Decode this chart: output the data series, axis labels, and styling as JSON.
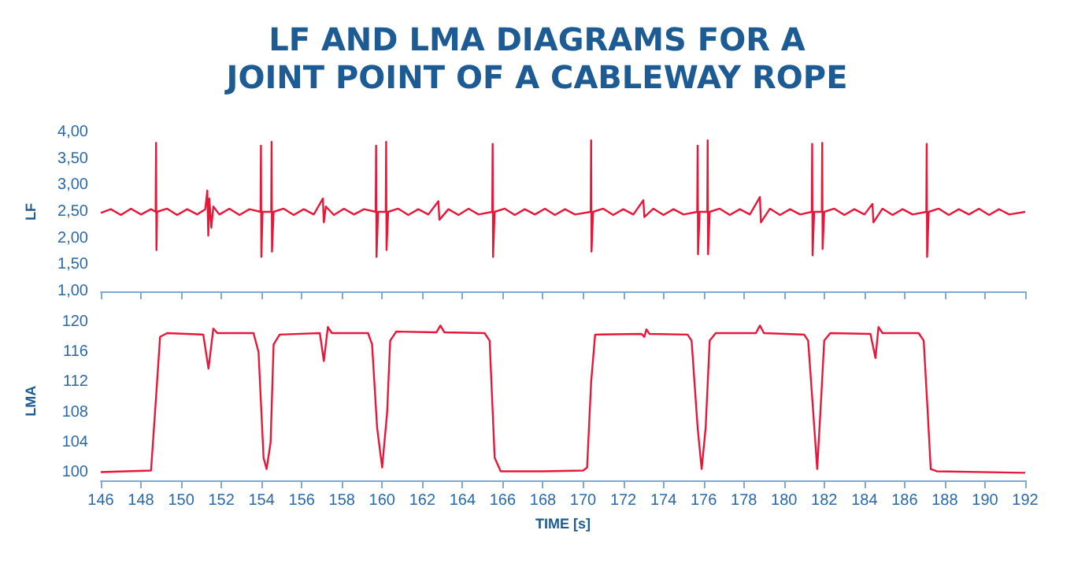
{
  "chart_data": [
    {
      "type": "line",
      "title": "LF AND LMA DIAGRAMS FOR A\nJOINT POINT OF A CABLEWAY ROPE",
      "ylabel": "LF",
      "marker": "none",
      "grid": false,
      "tick_labels": "y",
      "xlim": [
        146,
        192
      ],
      "xticks": [
        146,
        148,
        150,
        152,
        154,
        156,
        158,
        160,
        162,
        164,
        166,
        168,
        170,
        172,
        174,
        176,
        178,
        180,
        182,
        184,
        186,
        188,
        190,
        192
      ],
      "ylim": [
        1,
        4
      ],
      "yticks": [
        {
          "value": 1,
          "label": "1,00"
        },
        {
          "value": 1.5,
          "label": "1,50"
        },
        {
          "value": 2,
          "label": "2,00"
        },
        {
          "value": 2.5,
          "label": "2,50"
        },
        {
          "value": 3,
          "label": "3,00"
        },
        {
          "value": 3.5,
          "label": "3,50"
        },
        {
          "value": 4,
          "label": "4,00"
        }
      ],
      "x": [
        146,
        146.5,
        147,
        147.5,
        148,
        148.5,
        148.73,
        148.75,
        148.77,
        148.8,
        149.3,
        149.8,
        150.3,
        150.8,
        151.2,
        151.3,
        151.35,
        151.4,
        151.5,
        151.6,
        151.9,
        152.4,
        152.9,
        153.4,
        153.95,
        153.97,
        153.99,
        154.05,
        154.48,
        154.5,
        154.52,
        154.6,
        155.1,
        155.6,
        156.1,
        156.6,
        157.05,
        157.1,
        157.2,
        157.6,
        158.1,
        158.6,
        159.1,
        159.68,
        159.7,
        159.72,
        159.8,
        160.18,
        160.2,
        160.22,
        160.3,
        160.8,
        161.3,
        161.8,
        162.3,
        162.8,
        162.85,
        163.3,
        163.8,
        164.3,
        164.8,
        165.48,
        165.5,
        165.52,
        165.6,
        166.1,
        166.6,
        167.1,
        167.6,
        168.1,
        168.6,
        169.1,
        169.6,
        170.38,
        170.4,
        170.42,
        170.5,
        171,
        171.5,
        172,
        172.5,
        173,
        173.05,
        173.5,
        174,
        174.5,
        175,
        175.68,
        175.7,
        175.72,
        175.8,
        176.18,
        176.2,
        176.22,
        176.3,
        176.8,
        177.3,
        177.8,
        178.3,
        178.8,
        178.85,
        179.3,
        179.8,
        180.3,
        180.8,
        181.38,
        181.4,
        181.42,
        181.5,
        181.88,
        181.9,
        181.92,
        182,
        182.5,
        183,
        183.5,
        184,
        184.4,
        184.45,
        184.9,
        185.4,
        185.9,
        186.4,
        187.08,
        187.1,
        187.12,
        187.2,
        187.7,
        188.2,
        188.7,
        189.2,
        189.7,
        190.2,
        190.7,
        191.2,
        192
      ],
      "series": [
        {
          "color": "#e8173a",
          "values": [
            2.48,
            2.55,
            2.44,
            2.56,
            2.45,
            2.55,
            2.5,
            3.8,
            1.78,
            2.5,
            2.56,
            2.44,
            2.55,
            2.45,
            2.55,
            2.9,
            2.05,
            2.75,
            2.2,
            2.6,
            2.45,
            2.56,
            2.44,
            2.55,
            2.5,
            3.75,
            1.65,
            2.5,
            2.5,
            3.82,
            1.75,
            2.5,
            2.56,
            2.44,
            2.55,
            2.45,
            2.75,
            2.3,
            2.6,
            2.44,
            2.56,
            2.45,
            2.55,
            2.5,
            3.75,
            1.65,
            2.5,
            2.5,
            3.82,
            1.78,
            2.5,
            2.56,
            2.44,
            2.55,
            2.45,
            2.7,
            2.35,
            2.55,
            2.44,
            2.56,
            2.45,
            2.5,
            3.78,
            1.65,
            2.5,
            2.56,
            2.44,
            2.55,
            2.45,
            2.56,
            2.44,
            2.55,
            2.45,
            2.5,
            3.85,
            1.75,
            2.5,
            2.56,
            2.44,
            2.55,
            2.45,
            2.72,
            2.4,
            2.56,
            2.44,
            2.55,
            2.45,
            2.5,
            3.75,
            1.7,
            2.5,
            2.5,
            3.85,
            1.7,
            2.5,
            2.56,
            2.44,
            2.55,
            2.45,
            2.78,
            2.3,
            2.56,
            2.44,
            2.55,
            2.45,
            2.5,
            3.78,
            1.68,
            2.5,
            2.5,
            3.8,
            1.8,
            2.5,
            2.56,
            2.44,
            2.55,
            2.45,
            2.65,
            2.3,
            2.56,
            2.44,
            2.55,
            2.45,
            2.5,
            3.78,
            1.65,
            2.5,
            2.56,
            2.44,
            2.55,
            2.45,
            2.56,
            2.44,
            2.55,
            2.45,
            2.5
          ]
        }
      ]
    },
    {
      "type": "line",
      "xlabel": "TIME [s]",
      "ylabel": "LMA",
      "marker": "none",
      "grid": false,
      "xlim": [
        146,
        192
      ],
      "xticks": [
        146,
        148,
        150,
        152,
        154,
        156,
        158,
        160,
        162,
        164,
        166,
        168,
        170,
        172,
        174,
        176,
        178,
        180,
        182,
        184,
        186,
        188,
        190,
        192
      ],
      "ylim": [
        99,
        120
      ],
      "yticks": [
        100,
        104,
        108,
        112,
        116,
        120
      ],
      "x": [
        146,
        148.5,
        148.75,
        148.95,
        149.3,
        151.1,
        151.36,
        151.6,
        151.8,
        153.6,
        153.85,
        154.1,
        154.25,
        154.45,
        154.6,
        154.9,
        156.9,
        157.1,
        157.3,
        157.5,
        159.3,
        159.5,
        159.75,
        160,
        160.25,
        160.4,
        160.7,
        162.7,
        162.9,
        163.1,
        165.1,
        165.35,
        165.6,
        165.9,
        168,
        170,
        170.2,
        170.4,
        170.6,
        172.9,
        173.05,
        173.15,
        173.3,
        175.2,
        175.4,
        175.7,
        175.9,
        176.1,
        176.3,
        176.6,
        178.6,
        178.8,
        179,
        181,
        181.2,
        181.4,
        181.65,
        181.85,
        182,
        182.3,
        184.3,
        184.55,
        184.7,
        184.9,
        186.7,
        186.95,
        187.15,
        187.3,
        187.6,
        192
      ],
      "series": [
        {
          "color": "#e8173a",
          "values": [
            100.1,
            100.3,
            110,
            118,
            118.5,
            118.3,
            113.8,
            119.1,
            118.5,
            118.5,
            116,
            102,
            100.5,
            104,
            117,
            118.3,
            118.5,
            114.8,
            119.3,
            118.5,
            118.5,
            117,
            106,
            100.7,
            108,
            117.5,
            118.7,
            118.6,
            119.5,
            118.6,
            118.5,
            117.5,
            102,
            100.2,
            100.2,
            100.3,
            100.7,
            112,
            118.3,
            118.4,
            118,
            119,
            118.4,
            118.3,
            117.5,
            106,
            100.5,
            106,
            117.5,
            118.5,
            118.5,
            119.5,
            118.5,
            118.3,
            117.5,
            110,
            100.5,
            110,
            117.5,
            118.5,
            118.4,
            115.2,
            119.3,
            118.5,
            118.5,
            117.5,
            108,
            100.5,
            100.2,
            100
          ]
        }
      ]
    }
  ]
}
